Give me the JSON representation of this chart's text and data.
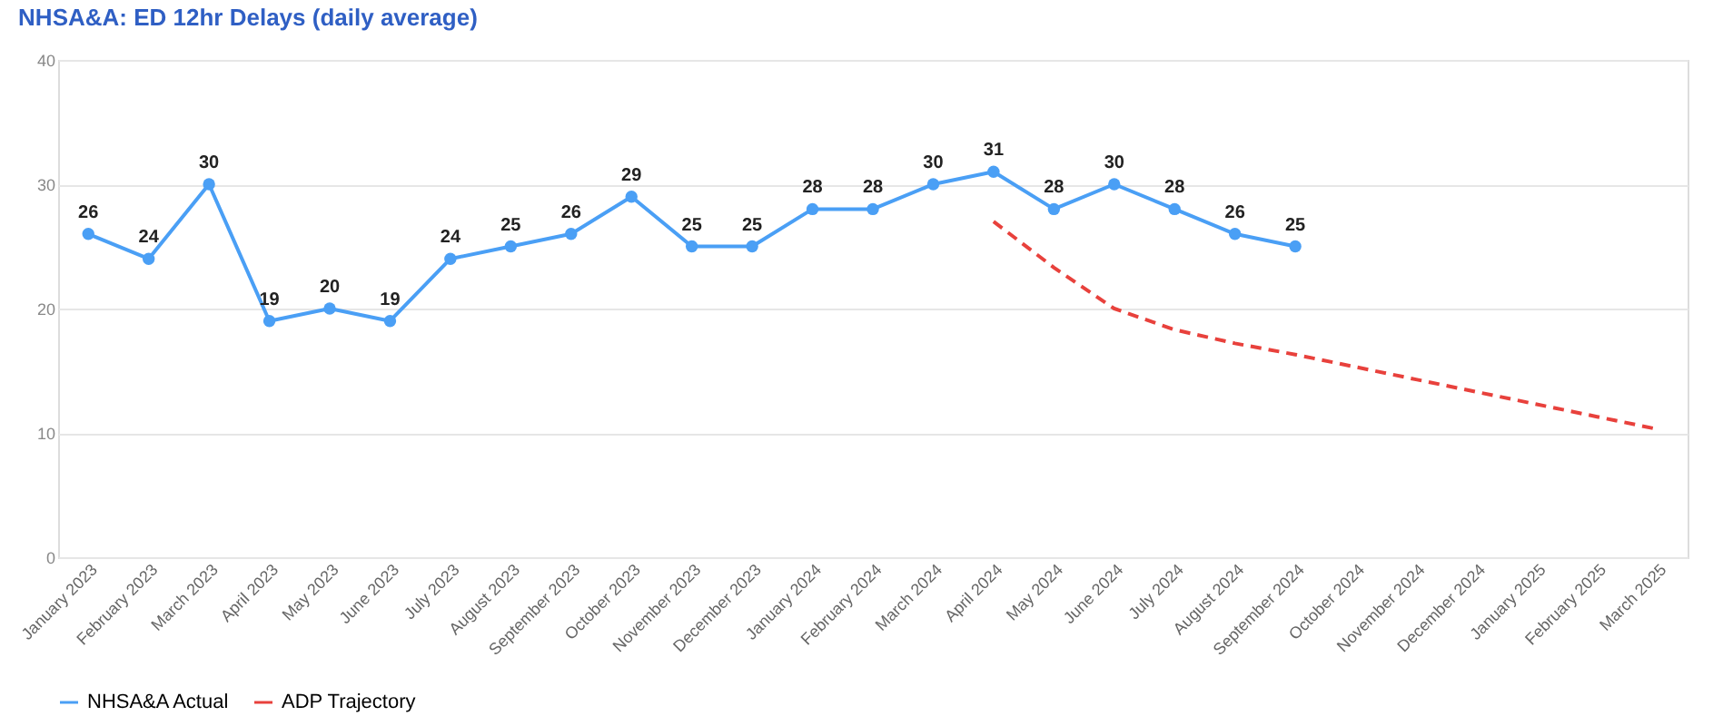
{
  "chart_data": {
    "type": "line",
    "title": "NHSA&A: ED 12hr Delays (daily average)",
    "categories": [
      "January 2023",
      "February 2023",
      "March 2023",
      "April 2023",
      "May 2023",
      "June 2023",
      "July 2023",
      "August 2023",
      "September 2023",
      "October 2023",
      "November 2023",
      "December 2023",
      "January 2024",
      "February 2024",
      "March 2024",
      "April 2024",
      "May 2024",
      "June 2024",
      "July 2024",
      "August 2024",
      "September 2024",
      "October 2024",
      "November 2024",
      "December 2024",
      "January 2025",
      "February 2025",
      "March 2025"
    ],
    "series": [
      {
        "name": "NHSA&A Actual",
        "color": "#4a9ff5",
        "marker": "circle",
        "line_style": "solid",
        "data_labels": true,
        "values": [
          26,
          24,
          30,
          19,
          20,
          19,
          24,
          25,
          26,
          29,
          25,
          25,
          28,
          28,
          30,
          31,
          28,
          30,
          28,
          26,
          25,
          null,
          null,
          null,
          null,
          null,
          null
        ]
      },
      {
        "name": "ADP Trajectory",
        "color": "#e8413c",
        "marker": "none",
        "line_style": "dashed",
        "values": [
          null,
          null,
          null,
          null,
          null,
          null,
          null,
          null,
          null,
          null,
          null,
          null,
          null,
          null,
          null,
          27,
          23.3,
          20,
          18.3,
          17.2,
          16.3,
          15.3,
          14.3,
          13.3,
          12.3,
          11.3,
          10.3
        ]
      }
    ],
    "ylim": [
      0,
      40
    ],
    "yticks": [
      0,
      10,
      20,
      30,
      40
    ],
    "grid": "y",
    "legend": "bottom"
  }
}
